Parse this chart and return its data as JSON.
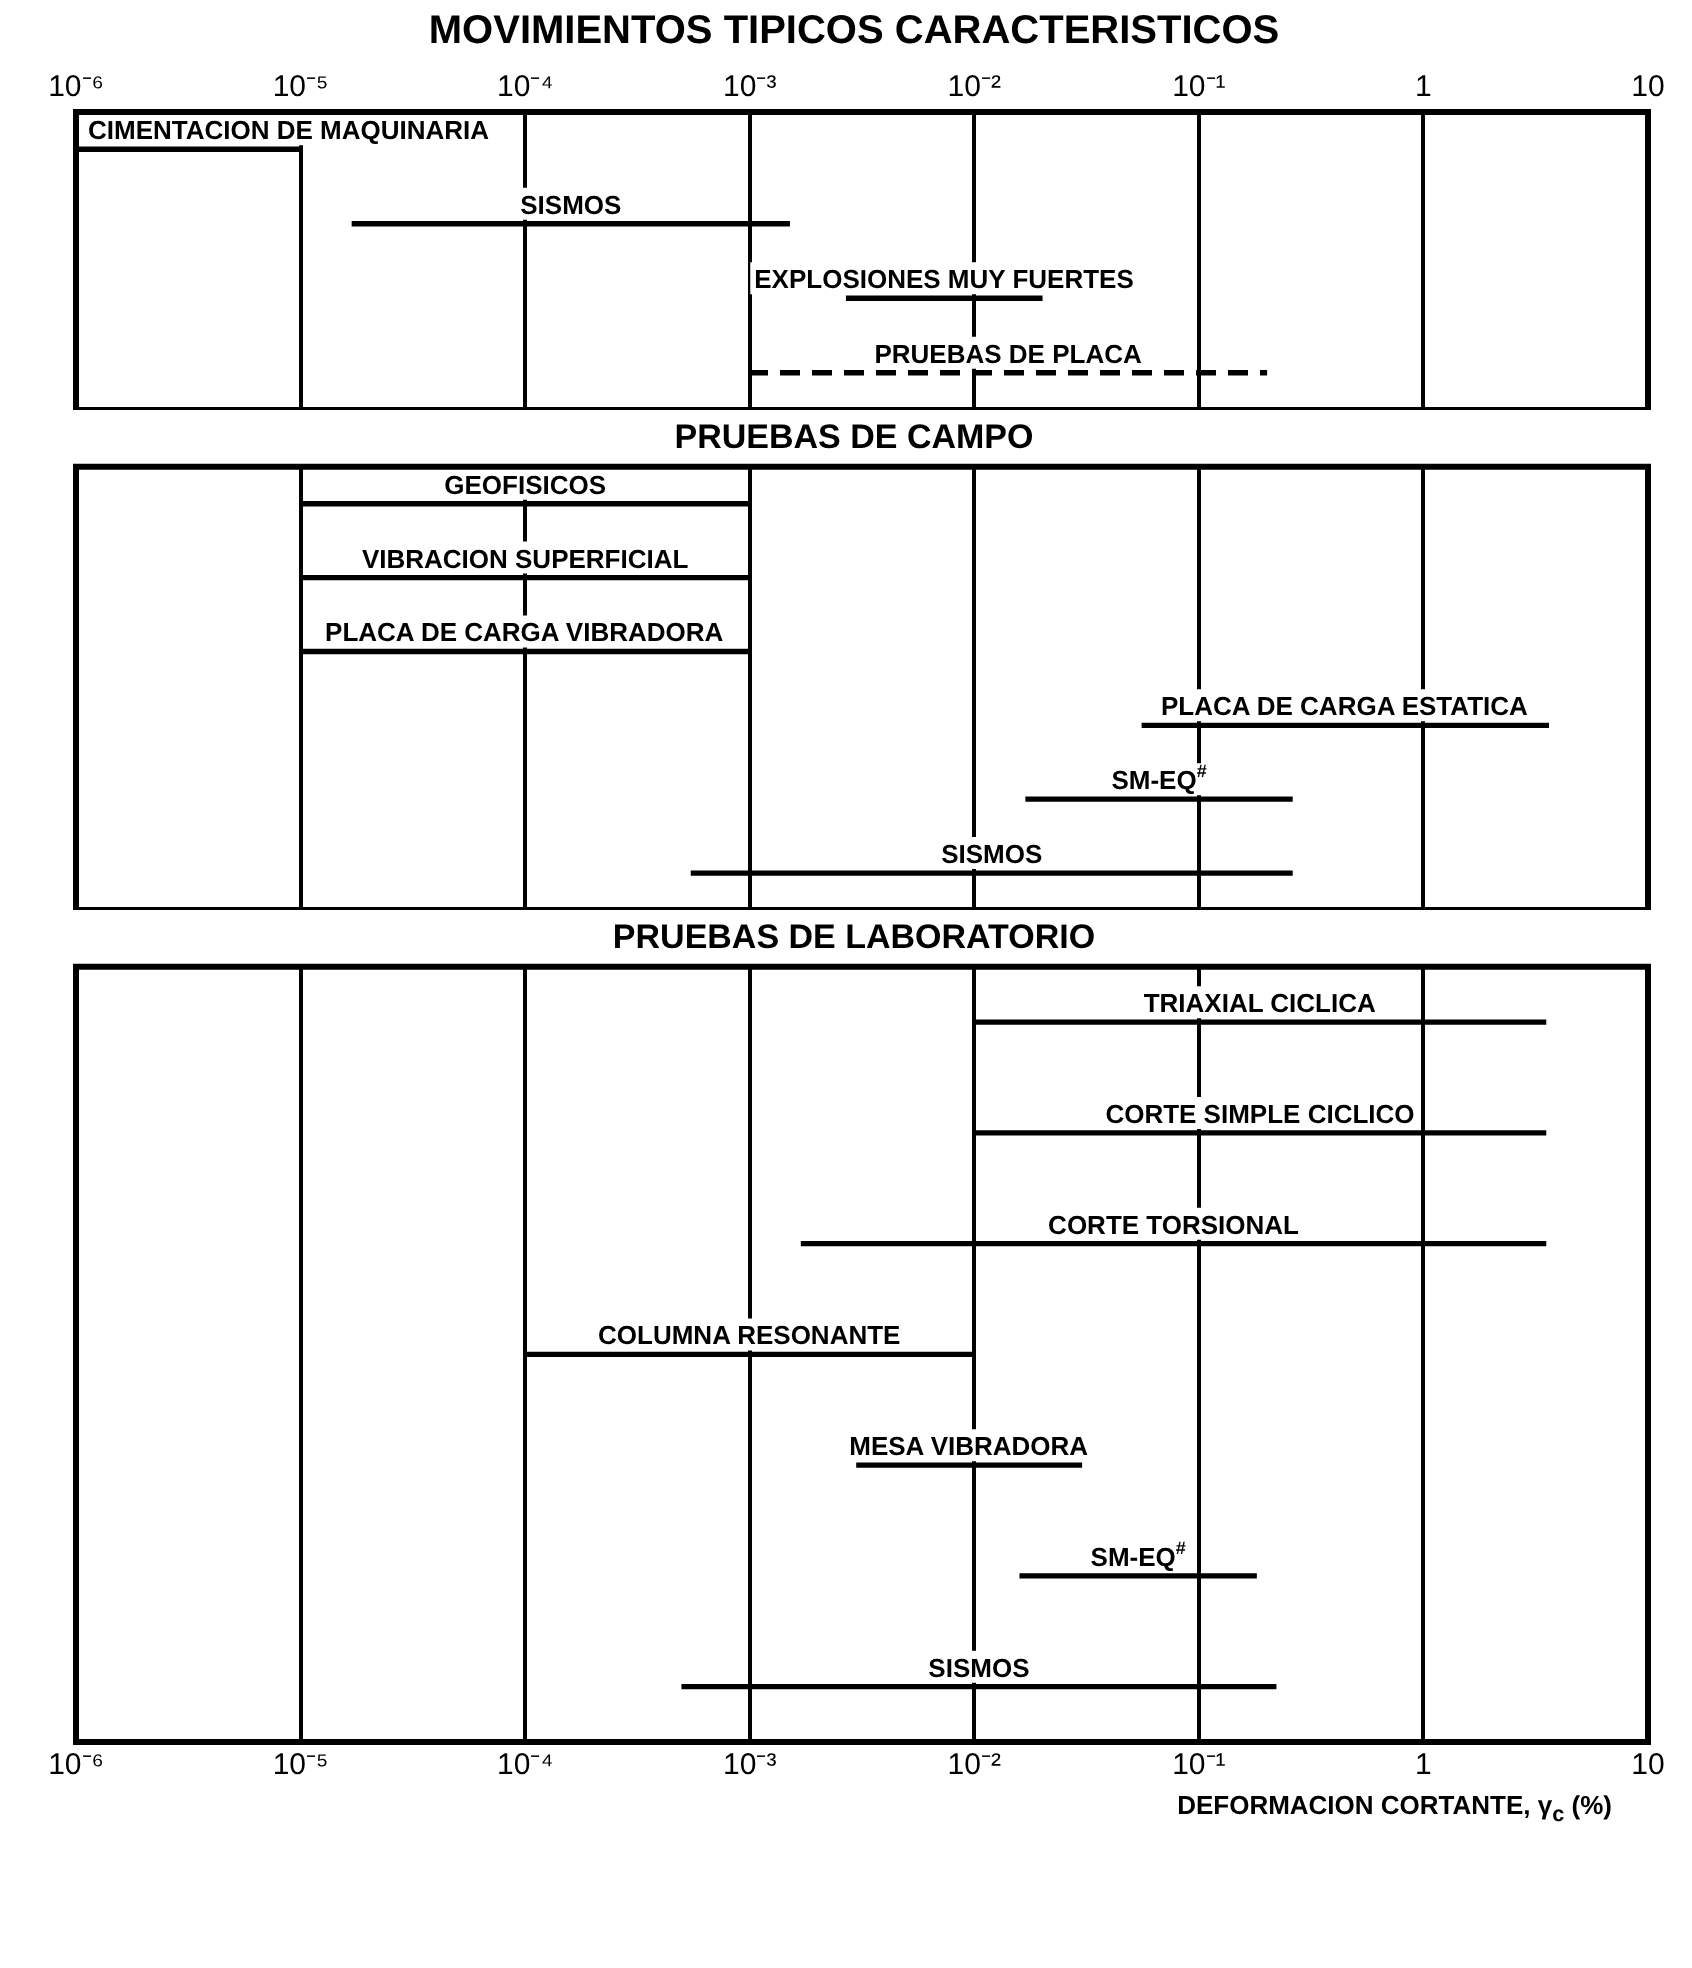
{
  "chart_data": [
    {
      "type": "bar",
      "orientation": "horizontal",
      "title": "MOVIMIENTOS TIPICOS CARACTERISTICOS",
      "log": "x",
      "grid": "x",
      "tick_labels": "x",
      "categories": [
        "CIMENTACION DE MAQUINARIA",
        "SISMOS",
        "EXPLOSIONES MUY FUERTES",
        "PRUEBAS DE PLACA"
      ],
      "series": [
        {
          "color": "#000000",
          "line_style": "solid",
          "base": [
            1e-06,
            1.7e-05,
            0.0027,
            null
          ],
          "values": [
            9e-06,
            0.001483,
            0.0173,
            null
          ]
        },
        {
          "color": "#000000",
          "line_style": "dashed",
          "base": [
            null,
            null,
            null,
            0.001
          ],
          "values": [
            null,
            null,
            null,
            0.199
          ]
        }
      ],
      "xlim": [
        1e-06,
        10
      ],
      "xticks": [
        {
          "value": 1e-06,
          "label": "10⁻⁶"
        },
        {
          "value": 1e-05,
          "label": "10⁻⁵"
        },
        {
          "value": 0.0001,
          "label": "10⁻⁴"
        },
        {
          "value": 0.001,
          "label": "10⁻³"
        },
        {
          "value": 0.01,
          "label": "10⁻²"
        },
        {
          "value": 0.1,
          "label": "10⁻¹"
        },
        {
          "value": 1,
          "label": "1"
        },
        {
          "value": 10,
          "label": "10"
        }
      ]
    },
    {
      "type": "bar",
      "orientation": "horizontal",
      "title": "PRUEBAS DE CAMPO",
      "log": "x",
      "grid": "x",
      "tick_labels": false,
      "categories": [
        "GEOFISICOS",
        "VIBRACION SUPERFICIAL",
        "PLACA DE CARGA VIBRADORA",
        "PLACA DE CARGA ESTATICA",
        "SM-EQ$^{#}$",
        "SISMOS"
      ],
      "base": [
        1e-05,
        1e-05,
        1e-05,
        0.056,
        0.017,
        0.00055
      ],
      "values": [
        0.00099,
        0.00099,
        0.00099,
        3.544,
        0.243,
        0.25945
      ],
      "color": "#000000",
      "xlim": [
        1e-06,
        10
      ],
      "xticks": [
        {
          "value": 1e-06,
          "label": null
        },
        {
          "value": 1e-05,
          "label": null
        },
        {
          "value": 0.0001,
          "label": null
        },
        {
          "value": 0.001,
          "label": null
        },
        {
          "value": 0.01,
          "label": null
        },
        {
          "value": 0.1,
          "label": null
        },
        {
          "value": 1,
          "label": null
        },
        {
          "value": 10,
          "label": null
        }
      ]
    },
    {
      "type": "bar",
      "orientation": "horizontal",
      "title": "PRUEBAS DE LABORATORIO",
      "xlabel": "DEFORMACION CORTANTE, γ$_{c}$ (%)",
      "log": "x",
      "grid": "x",
      "tick_labels": "x",
      "categories": [
        "TRIAXIAL CICLICA",
        "CORTE SIMPLE CICLICO",
        "CORTE TORSIONAL",
        "COLUMNA RESONANTE",
        "MESA VIBRADORA",
        "SM-EQ$^{#}$",
        "SISMOS"
      ],
      "base": [
        0.01,
        0.01,
        0.0017,
        0.0001,
        0.003,
        0.016,
        0.0005
      ],
      "values": [
        3.49,
        3.49,
        3.4983,
        0.0099,
        0.027,
        0.164,
        0.2195
      ],
      "color": "#000000",
      "xlim": [
        1e-06,
        10
      ],
      "xticks": [
        {
          "value": 1e-06,
          "label": "10⁻⁶"
        },
        {
          "value": 1e-05,
          "label": "10⁻⁵"
        },
        {
          "value": 0.0001,
          "label": "10⁻⁴"
        },
        {
          "value": 0.001,
          "label": "10⁻³"
        },
        {
          "value": 0.01,
          "label": "10⁻²"
        },
        {
          "value": 0.1,
          "label": "10⁻¹"
        },
        {
          "value": 1,
          "label": "1"
        },
        {
          "value": 10,
          "label": "10"
        }
      ]
    }
  ]
}
